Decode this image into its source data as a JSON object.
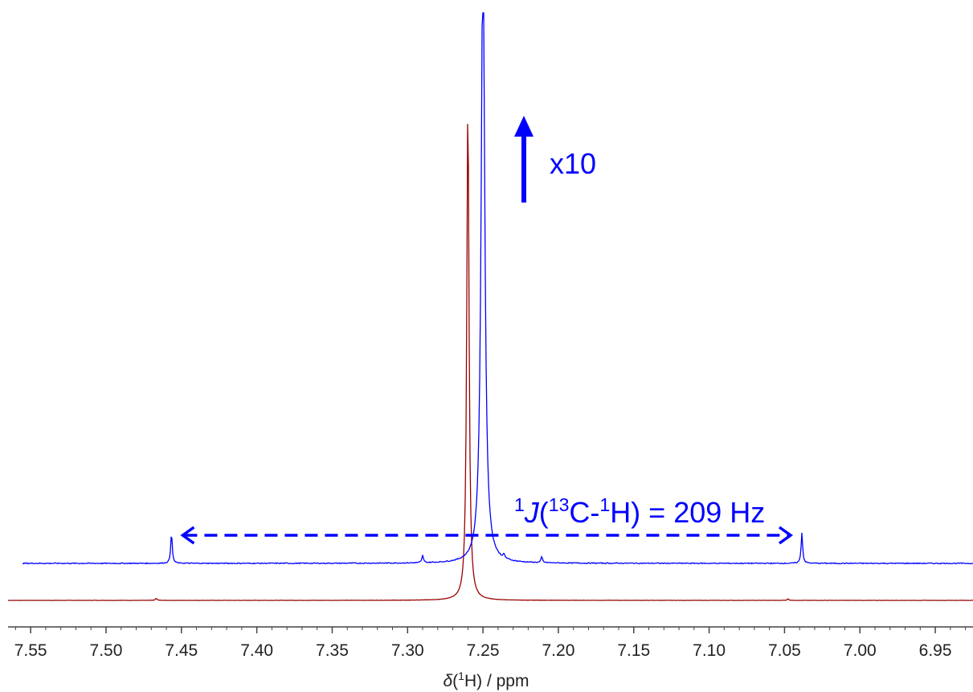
{
  "chart_data": {
    "type": "line",
    "x_reversed": true,
    "xlim": [
      7.565,
      6.925
    ],
    "ylim": [
      0,
      100
    ],
    "grid": false,
    "legend": "none",
    "xlabel": {
      "delta": "δ",
      "open": "(",
      "sup": "1",
      "close": "H) / ppm"
    },
    "ticks": [
      {
        "value": 7.55,
        "label": "7.55"
      },
      {
        "value": 7.5,
        "label": "7.50"
      },
      {
        "value": 7.45,
        "label": "7.45"
      },
      {
        "value": 7.4,
        "label": "7.40"
      },
      {
        "value": 7.35,
        "label": "7.35"
      },
      {
        "value": 7.3,
        "label": "7.30"
      },
      {
        "value": 7.25,
        "label": "7.25"
      },
      {
        "value": 7.2,
        "label": "7.20"
      },
      {
        "value": 7.15,
        "label": "7.15"
      },
      {
        "value": 7.1,
        "label": "7.10"
      },
      {
        "value": 7.05,
        "label": "7.05"
      },
      {
        "value": 7.0,
        "label": "7.00"
      },
      {
        "value": 6.95,
        "label": "6.95"
      }
    ],
    "series": [
      {
        "color": "#990000",
        "baseline": 0,
        "peaks": [
          {
            "x": 7.26,
            "height": 94.0,
            "width": 0.0009
          },
          {
            "x": 7.4667,
            "height": 0.4,
            "width": 0.0006
          },
          {
            "x": 7.0477,
            "height": 0.3,
            "width": 0.0006
          }
        ]
      },
      {
        "color": "#0000ff",
        "scale": "x10",
        "baseline": 7.0,
        "peaks": [
          {
            "x": 7.25,
            "height": 120.0,
            "width": 0.0014
          },
          {
            "x": 7.4566,
            "height": 5.8,
            "width": 0.0006
          },
          {
            "x": 7.0385,
            "height": 5.8,
            "width": 0.0006
          },
          {
            "x": 7.29,
            "height": 1.4,
            "width": 0.0006
          },
          {
            "x": 7.211,
            "height": 1.1,
            "width": 0.0006
          },
          {
            "x": 7.236,
            "height": 0.7,
            "width": 0.0006
          }
        ]
      }
    ],
    "annotations": {
      "scale_label": "x10",
      "coupling": {
        "sup_1": "1",
        "j": "J",
        "open": "(",
        "sup_13": "13",
        "c": "C-",
        "sup_1b": "1",
        "rest": "H) = 209 Hz"
      },
      "coupling_arrow": {
        "from": 7.4566,
        "to": 7.0385
      }
    }
  }
}
